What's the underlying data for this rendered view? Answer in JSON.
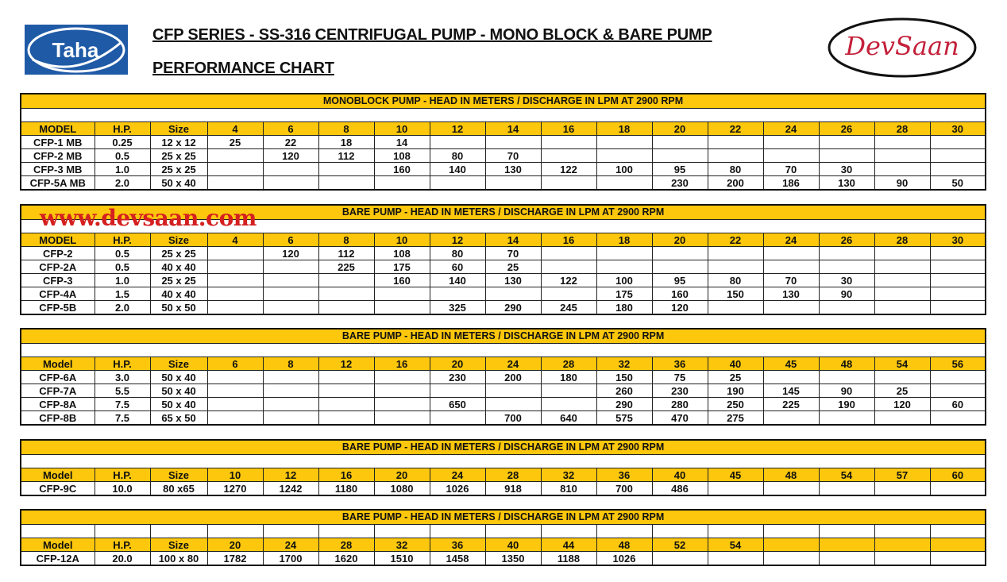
{
  "header": {
    "title_line1": "CFP SERIES - SS-316 CENTRIFUGAL PUMP - MONO BLOCK & BARE PUMP",
    "title_line2": "PERFORMANCE CHART",
    "left_logo": "Taha",
    "right_logo": "DevSaan",
    "watermark": "www.devsaan.com"
  },
  "colors": {
    "accent": "#fcc70c",
    "logo_blue": "#1f5aa6",
    "watermark_red": "#d42020",
    "devsaan_red": "#c4203a"
  },
  "tables": [
    {
      "caption": "MONOBLOCK PUMP - HEAD IN METERS / DISCHARGE IN LPM AT 2900 RPM",
      "blank_grid": false,
      "columns": [
        "MODEL",
        "H.P.",
        "Size",
        "4",
        "6",
        "8",
        "10",
        "12",
        "14",
        "16",
        "18",
        "20",
        "22",
        "24",
        "26",
        "28",
        "30"
      ],
      "rows": [
        [
          "CFP-1 MB",
          "0.25",
          "12 x 12",
          "25",
          "22",
          "18",
          "14",
          "",
          "",
          "",
          "",
          "",
          "",
          "",
          "",
          "",
          ""
        ],
        [
          "CFP-2 MB",
          "0.5",
          "25 x 25",
          "",
          "120",
          "112",
          "108",
          "80",
          "70",
          "",
          "",
          "",
          "",
          "",
          "",
          "",
          ""
        ],
        [
          "CFP-3 MB",
          "1.0",
          "25 x 25",
          "",
          "",
          "",
          "160",
          "140",
          "130",
          "122",
          "100",
          "95",
          "80",
          "70",
          "30",
          "",
          ""
        ],
        [
          "CFP-5A MB",
          "2.0",
          "50 x 40",
          "",
          "",
          "",
          "",
          "",
          "",
          "",
          "",
          "230",
          "200",
          "186",
          "130",
          "90",
          "50"
        ]
      ]
    },
    {
      "caption": "BARE PUMP - HEAD IN METERS / DISCHARGE IN LPM AT 2900 RPM",
      "blank_grid": false,
      "columns": [
        "MODEL",
        "H.P.",
        "Size",
        "4",
        "6",
        "8",
        "10",
        "12",
        "14",
        "16",
        "18",
        "20",
        "22",
        "24",
        "26",
        "28",
        "30"
      ],
      "rows": [
        [
          "CFP-2",
          "0.5",
          "25 x 25",
          "",
          "120",
          "112",
          "108",
          "80",
          "70",
          "",
          "",
          "",
          "",
          "",
          "",
          "",
          ""
        ],
        [
          "CFP-2A",
          "0.5",
          "40 x 40",
          "",
          "",
          "225",
          "175",
          "60",
          "25",
          "",
          "",
          "",
          "",
          "",
          "",
          "",
          ""
        ],
        [
          "CFP-3",
          "1.0",
          "25 x 25",
          "",
          "",
          "",
          "160",
          "140",
          "130",
          "122",
          "100",
          "95",
          "80",
          "70",
          "30",
          "",
          ""
        ],
        [
          "CFP-4A",
          "1.5",
          "40 x 40",
          "",
          "",
          "",
          "",
          "",
          "",
          "",
          "175",
          "160",
          "150",
          "130",
          "90",
          "",
          ""
        ],
        [
          "CFP-5B",
          "2.0",
          "50 x 50",
          "",
          "",
          "",
          "",
          "325",
          "290",
          "245",
          "180",
          "120",
          "",
          "",
          "",
          "",
          ""
        ]
      ]
    },
    {
      "caption": "BARE PUMP - HEAD IN METERS / DISCHARGE IN LPM AT 2900 RPM",
      "blank_grid": false,
      "columns": [
        "Model",
        "H.P.",
        "Size",
        "6",
        "8",
        "12",
        "16",
        "20",
        "24",
        "28",
        "32",
        "36",
        "40",
        "45",
        "48",
        "54",
        "56"
      ],
      "rows": [
        [
          "CFP-6A",
          "3.0",
          "50 x 40",
          "",
          "",
          "",
          "",
          "230",
          "200",
          "180",
          "150",
          "75",
          "25",
          "",
          "",
          "",
          ""
        ],
        [
          "CFP-7A",
          "5.5",
          "50 x 40",
          "",
          "",
          "",
          "",
          "",
          "",
          "",
          "260",
          "230",
          "190",
          "145",
          "90",
          "25",
          ""
        ],
        [
          "CFP-8A",
          "7.5",
          "50 x 40",
          "",
          "",
          "",
          "",
          "650",
          "",
          "",
          "290",
          "280",
          "250",
          "225",
          "190",
          "120",
          "60"
        ],
        [
          "CFP-8B",
          "7.5",
          "65 x 50",
          "",
          "",
          "",
          "",
          "",
          "700",
          "640",
          "575",
          "470",
          "275",
          "",
          "",
          "",
          ""
        ]
      ]
    },
    {
      "caption": "BARE PUMP - HEAD IN METERS / DISCHARGE IN LPM AT 2900 RPM",
      "blank_grid": false,
      "columns": [
        "Model",
        "H.P.",
        "Size",
        "10",
        "12",
        "16",
        "20",
        "24",
        "28",
        "32",
        "36",
        "40",
        "45",
        "48",
        "54",
        "57",
        "60"
      ],
      "rows": [
        [
          "CFP-9C",
          "10.0",
          "80 x65",
          "1270",
          "1242",
          "1180",
          "1080",
          "1026",
          "918",
          "810",
          "700",
          "486",
          "",
          "",
          "",
          "",
          ""
        ]
      ]
    },
    {
      "caption": "BARE PUMP - HEAD IN METERS / DISCHARGE IN LPM AT 2900 RPM",
      "blank_grid": true,
      "columns": [
        "Model",
        "H.P.",
        "Size",
        "20",
        "24",
        "28",
        "32",
        "36",
        "40",
        "44",
        "48",
        "52",
        "54",
        "",
        "",
        "",
        ""
      ],
      "rows": [
        [
          "CFP-12A",
          "20.0",
          "100 x 80",
          "1782",
          "1700",
          "1620",
          "1510",
          "1458",
          "1350",
          "1188",
          "1026",
          "",
          "",
          "",
          "",
          "",
          ""
        ]
      ]
    }
  ]
}
